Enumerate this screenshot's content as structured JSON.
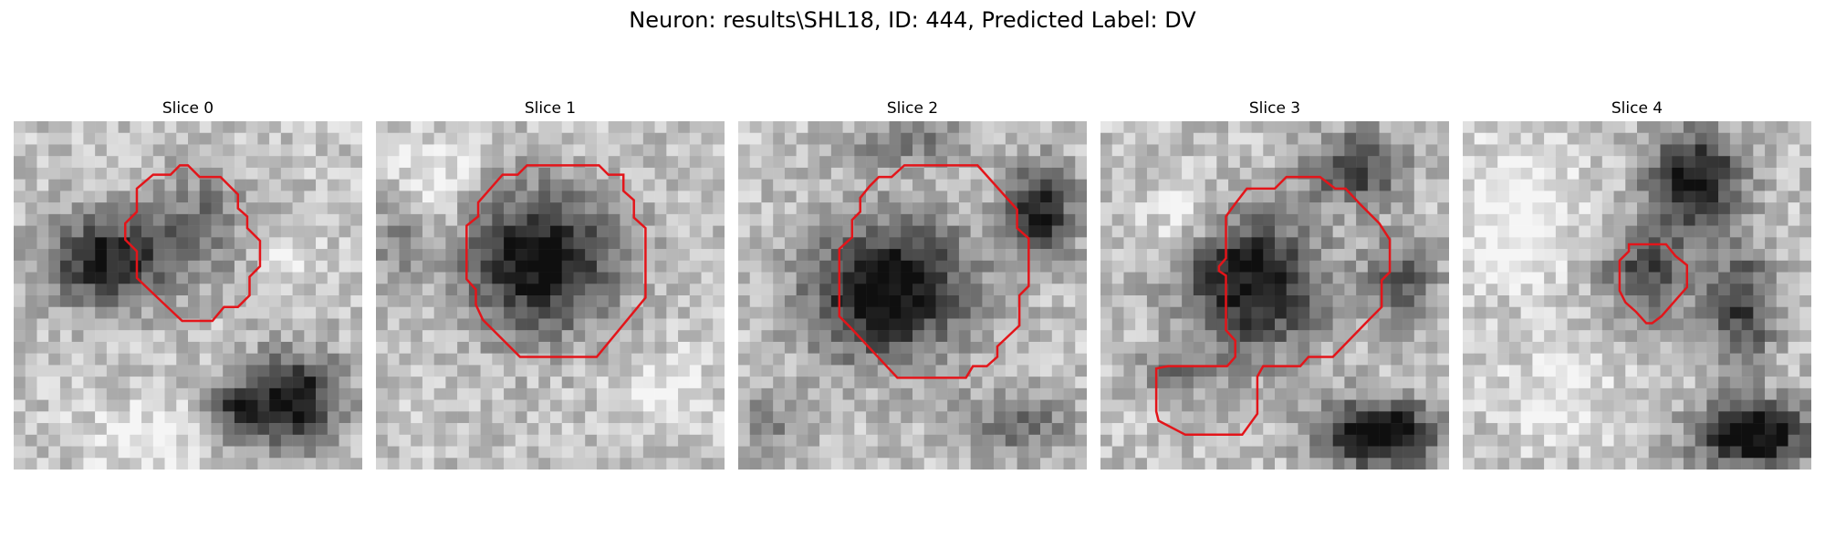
{
  "figure": {
    "suptitle": "Neuron: results\\SHL18, ID: 444, Predicted Label: DV",
    "contour_color": "#e3151a",
    "colormap": "grayscale",
    "slices": [
      {
        "title": "Slice 0"
      },
      {
        "title": "Slice 1"
      },
      {
        "title": "Slice 2"
      },
      {
        "title": "Slice 3"
      },
      {
        "title": "Slice 4"
      }
    ]
  }
}
